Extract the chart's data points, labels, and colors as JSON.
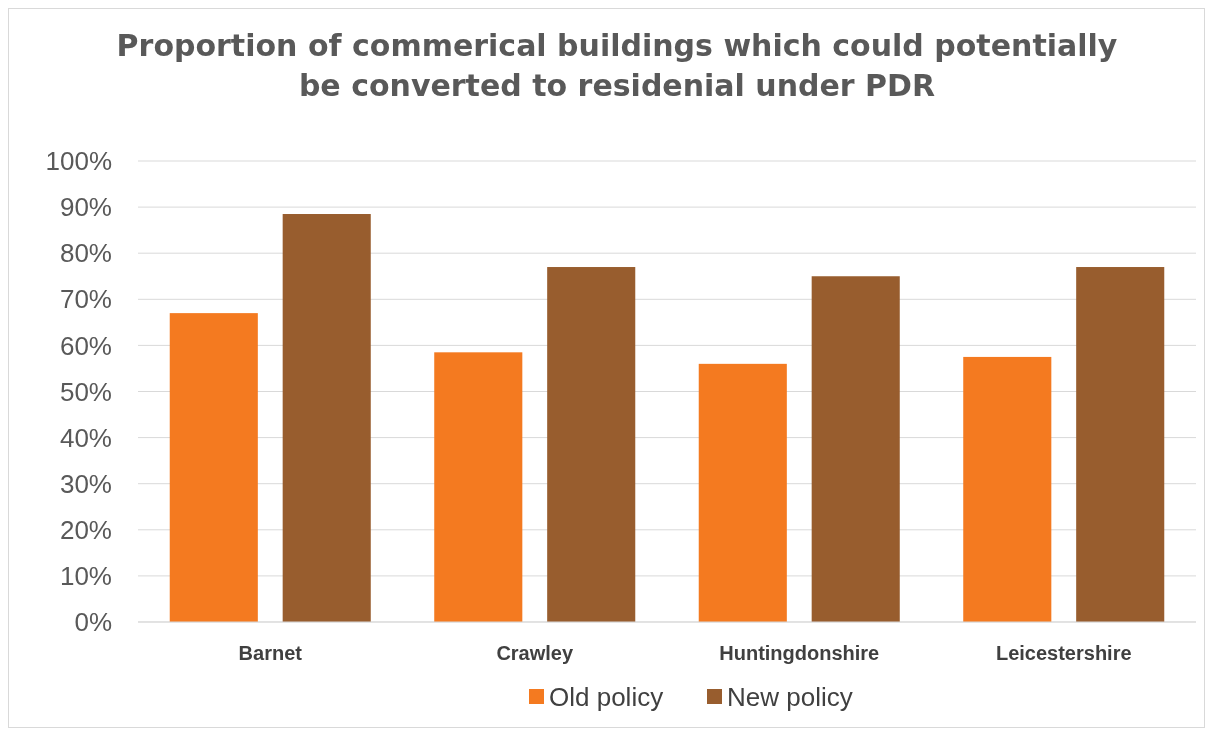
{
  "chart_data": {
    "type": "bar",
    "title": "Proportion of commerical buildings which could potentially be converted to residenial under PDR",
    "categories": [
      "Barnet",
      "Crawley",
      "Huntingdonshire",
      "Leicestershire"
    ],
    "series": [
      {
        "name": "Old policy",
        "color": "#f47a20",
        "values": [
          67,
          58.5,
          56,
          57.5
        ]
      },
      {
        "name": "New policy",
        "color": "#985d2e",
        "values": [
          88.5,
          77,
          75,
          77
        ]
      }
    ],
    "ylim": [
      0,
      100
    ],
    "yticks": [
      {
        "value": 0,
        "label": "0%"
      },
      {
        "value": 10,
        "label": "10%"
      },
      {
        "value": 20,
        "label": "20%"
      },
      {
        "value": 30,
        "label": "30%"
      },
      {
        "value": 40,
        "label": "40%"
      },
      {
        "value": 50,
        "label": "50%"
      },
      {
        "value": 60,
        "label": "60%"
      },
      {
        "value": 70,
        "label": "70%"
      },
      {
        "value": 80,
        "label": "80%"
      },
      {
        "value": 90,
        "label": "90%"
      },
      {
        "value": 100,
        "label": "100%"
      }
    ],
    "grid": "y",
    "legend": "bottom"
  }
}
